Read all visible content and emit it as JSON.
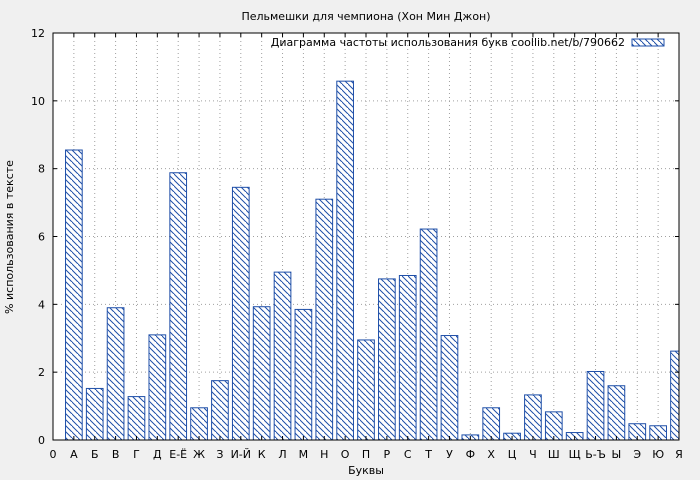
{
  "chart_data": {
    "type": "bar",
    "title": "Пельмешки для чемпиона (Хон Мин Джон)",
    "xlabel": "Буквы",
    "ylabel": "% использования в тексте",
    "legend_label": "Диаграмма частоты использования букв coollib.net/b/790662",
    "legend_position": "top-right",
    "grid": true,
    "ylim": [
      0,
      12
    ],
    "yticks": [
      "0",
      "2",
      "4",
      "6",
      "8",
      "10",
      "12"
    ],
    "x_tick_labels": [
      "0",
      "А",
      "Б",
      "В",
      "Г",
      "Д",
      "Е-Ё",
      "Ж",
      "З",
      "И-Й",
      "К",
      "Л",
      "М",
      "Н",
      "О",
      "П",
      "Р",
      "С",
      "Т",
      "У",
      "Ф",
      "Х",
      "Ц",
      "Ч",
      "Ш",
      "Щ",
      "Ь-Ъ",
      "Ы",
      "Э",
      "Ю",
      "Я"
    ],
    "categories": [
      "А",
      "Б",
      "В",
      "Г",
      "Д",
      "Е-Ё",
      "Ж",
      "З",
      "И-Й",
      "К",
      "Л",
      "М",
      "Н",
      "О",
      "П",
      "Р",
      "С",
      "Т",
      "У",
      "Ф",
      "Х",
      "Ц",
      "Ч",
      "Ш",
      "Щ",
      "Ь-Ъ",
      "Ы",
      "Э",
      "Ю",
      "Я"
    ],
    "values": [
      8.55,
      1.52,
      3.9,
      1.28,
      3.1,
      7.88,
      0.95,
      1.75,
      7.45,
      3.93,
      4.95,
      3.85,
      7.1,
      10.58,
      2.95,
      4.75,
      4.85,
      6.22,
      3.08,
      0.15,
      0.95,
      0.2,
      1.33,
      0.83,
      0.22,
      2.02,
      1.6,
      0.48,
      0.42,
      2.62
    ],
    "colors": {
      "bar_stroke": "#1f4fa8",
      "hatch": "#1f4fa8",
      "bar_fill": "#ffffff",
      "plot_bg": "#ffffff",
      "grid": "#a0a0a0"
    }
  }
}
